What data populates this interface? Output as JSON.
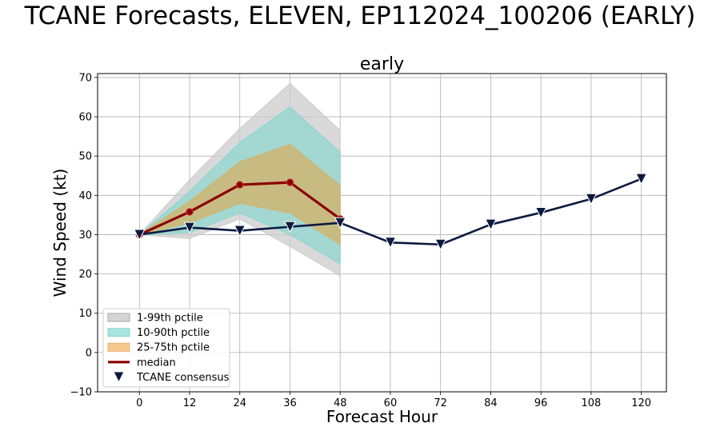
{
  "figure": {
    "suptitle": "TCANE Forecasts, ELEVEN, EP112024_100206 (EARLY)"
  },
  "chart_data": {
    "type": "line",
    "title": "early",
    "xlabel": "Forecast Hour",
    "ylabel": "Wind Speed (kt)",
    "xlim": [
      -10,
      126
    ],
    "ylim": [
      -10,
      71
    ],
    "xticks": [
      0,
      12,
      24,
      36,
      48,
      60,
      72,
      84,
      96,
      108,
      120
    ],
    "yticks": [
      -10,
      0,
      10,
      20,
      30,
      40,
      50,
      60,
      70
    ],
    "grid": true,
    "legend_position": "bottom-left",
    "bands": [
      {
        "name": "1-99th pctile",
        "color": "#cccccc",
        "x": [
          0,
          12,
          24,
          36,
          48
        ],
        "lower": [
          30,
          29,
          34,
          27,
          19.5
        ],
        "upper": [
          30,
          44,
          57,
          68.5,
          56.5
        ]
      },
      {
        "name": "10-90th pctile",
        "color": "#8fd6cf",
        "x": [
          0,
          12,
          24,
          36,
          48
        ],
        "lower": [
          30,
          30.5,
          35.5,
          30,
          22.5
        ],
        "upper": [
          30,
          41,
          53.5,
          62.5,
          51
        ]
      },
      {
        "name": "25-75th pctile",
        "color": "#d4b266",
        "x": [
          0,
          12,
          24,
          36,
          48
        ],
        "lower": [
          30,
          33,
          38,
          35.5,
          27.5
        ],
        "upper": [
          30,
          38.5,
          48.5,
          53,
          42.5
        ]
      }
    ],
    "series": [
      {
        "name": "median",
        "color": "#8b0000",
        "marker": "circle",
        "x": [
          0,
          12,
          24,
          36,
          48
        ],
        "values": [
          30,
          35.8,
          42.7,
          43.3,
          34
        ]
      },
      {
        "name": "TCANE consensus",
        "color": "#0b1a3f",
        "marker": "triangle-down",
        "x": [
          0,
          12,
          24,
          36,
          48,
          60,
          72,
          84,
          96,
          108,
          120
        ],
        "values": [
          30,
          31.8,
          31,
          32,
          33,
          28,
          27.5,
          32.6,
          35.6,
          39.1,
          44.2
        ]
      }
    ],
    "legend": [
      {
        "label": "1-99th pctile",
        "kind": "patch",
        "color": "#d4d4d4",
        "edge": "#a8a8a8"
      },
      {
        "label": "10-90th pctile",
        "kind": "patch",
        "color": "#a8e4df",
        "edge": "#8fd6cf"
      },
      {
        "label": "25-75th pctile",
        "kind": "patch",
        "color": "#f7c98f",
        "edge": "#e8b070"
      },
      {
        "label": "median",
        "kind": "line",
        "color": "#8b0000"
      },
      {
        "label": "TCANE consensus",
        "kind": "marker",
        "color": "#0b1a3f"
      }
    ]
  }
}
